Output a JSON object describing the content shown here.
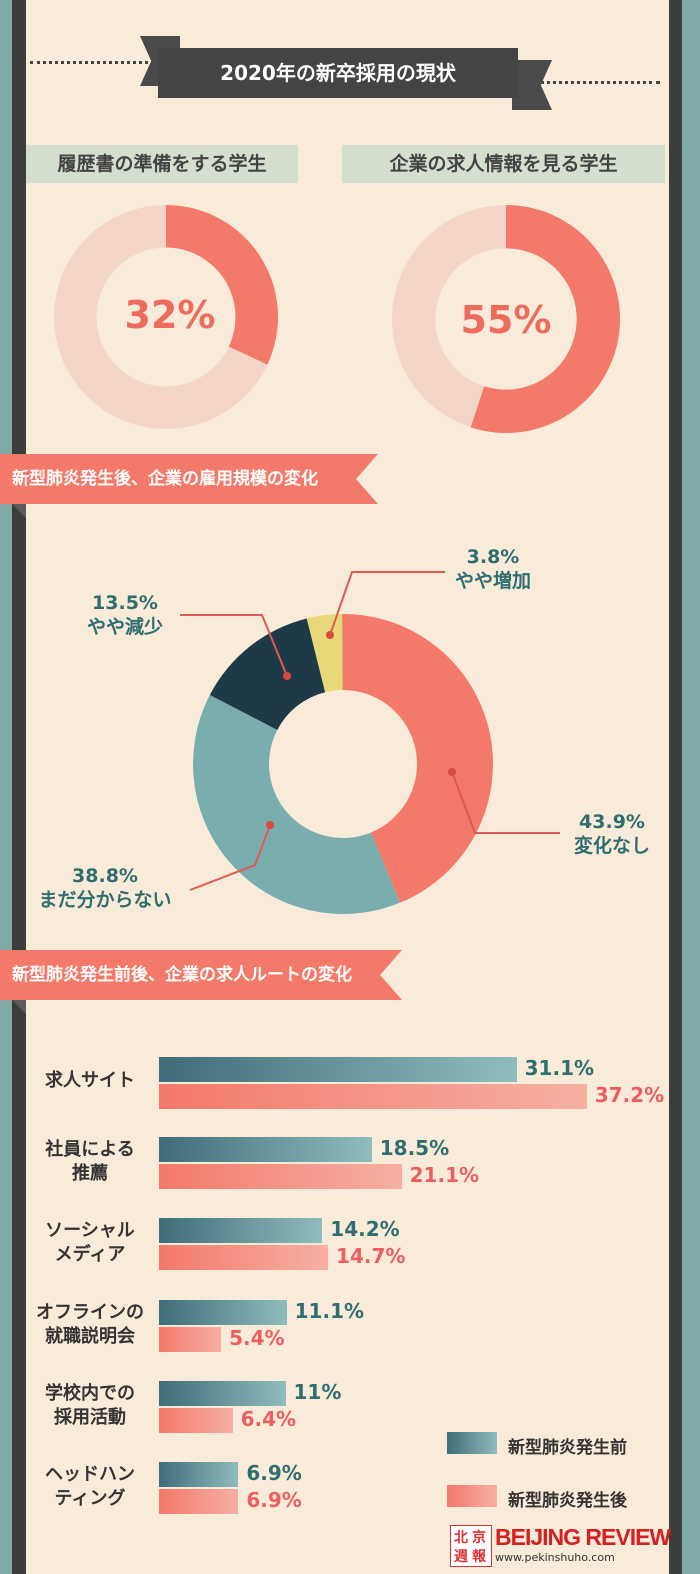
{
  "header": {
    "title": "2020年の新卒採用の現状"
  },
  "donuts": [
    {
      "label": "履歴書の準備をする学生",
      "value_text": "32%",
      "value": 32
    },
    {
      "label": "企業の求人情報を見る学生",
      "value_text": "55%",
      "value": 55
    }
  ],
  "sections": {
    "pie_title": "新型肺炎発生後、企業の雇用規模の変化",
    "bar_title": "新型肺炎発生前後、企業の求人ルートの変化"
  },
  "colors": {
    "salmon": "#f3796a",
    "teal": "#7aaeae",
    "navy": "#1f3a47",
    "yellow": "#e8d978",
    "teal_text": "#2f6e70",
    "salmon_text": "#ee5e60",
    "dark_teal_bar": "#3e6d79"
  },
  "chart_data": [
    {
      "type": "pie",
      "title": "新型肺炎発生後、企業の雇用規模の変化",
      "slices": [
        {
          "label": "やや増加",
          "value": 3.8,
          "value_text": "3.8%",
          "color": "#e8d978"
        },
        {
          "label": "変化なし",
          "value": 43.9,
          "value_text": "43.9%",
          "color": "#f3796a"
        },
        {
          "label": "まだ分からない",
          "value": 38.8,
          "value_text": "38.8%",
          "color": "#7aaeae"
        },
        {
          "label": "やや減少",
          "value": 13.5,
          "value_text": "13.5%",
          "color": "#1f3a47"
        }
      ]
    },
    {
      "type": "bar",
      "title": "新型肺炎発生前後、企業の求人ルートの変化",
      "categories": [
        [
          "求人サイト"
        ],
        [
          "社員による",
          "推薦"
        ],
        [
          "ソーシャル",
          "メディア"
        ],
        [
          "オフラインの",
          "就職説明会"
        ],
        [
          "学校内での",
          "採用活動"
        ],
        [
          "ヘッドハン",
          "ティング"
        ]
      ],
      "series": [
        {
          "name": "新型肺炎発生前",
          "values": [
            31.1,
            18.5,
            14.2,
            11.1,
            11,
            6.9
          ],
          "labels": [
            "31.1%",
            "18.5%",
            "14.2%",
            "11.1%",
            "11%",
            "6.9%"
          ]
        },
        {
          "name": "新型肺炎発生後",
          "values": [
            37.2,
            21.1,
            14.7,
            5.4,
            6.4,
            6.9
          ],
          "labels": [
            "37.2%",
            "21.1%",
            "14.7%",
            "5.4%",
            "6.4%",
            "6.9%"
          ]
        }
      ]
    }
  ],
  "brand": {
    "logo_chars": [
      "北",
      "京",
      "週",
      "報"
    ],
    "name": "BEIJING REVIEW",
    "url": "www.pekinshuho.com"
  }
}
